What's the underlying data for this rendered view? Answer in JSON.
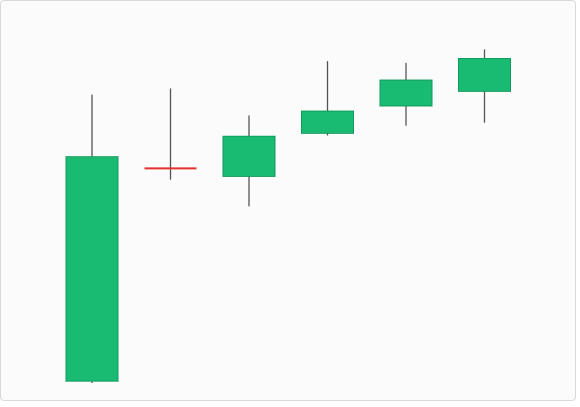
{
  "chart_data": {
    "type": "candlestick",
    "title": "",
    "xlabel": "",
    "ylabel": "",
    "ylim": [
      0,
      100
    ],
    "grid": false,
    "colors": {
      "up": "#19bb73",
      "up_border": "#129a5c",
      "doji": "#e5302e",
      "wick": "#555555",
      "background": "#fbfbfb"
    },
    "candles": [
      {
        "open": 0.5,
        "high": 79,
        "low": 0,
        "close": 62,
        "direction": "up"
      },
      {
        "open": 58.8,
        "high": 80.7,
        "low": 55.7,
        "close": 58.8,
        "direction": "doji"
      },
      {
        "open": 56.6,
        "high": 73.3,
        "low": 48.4,
        "close": 67.6,
        "direction": "up"
      },
      {
        "open": 68.4,
        "high": 88.2,
        "low": 67.8,
        "close": 74.5,
        "direction": "up"
      },
      {
        "open": 75.9,
        "high": 87.7,
        "low": 70.5,
        "close": 83.0,
        "direction": "up"
      },
      {
        "open": 79.9,
        "high": 91.4,
        "low": 71.3,
        "close": 88.9,
        "direction": "up"
      }
    ]
  }
}
